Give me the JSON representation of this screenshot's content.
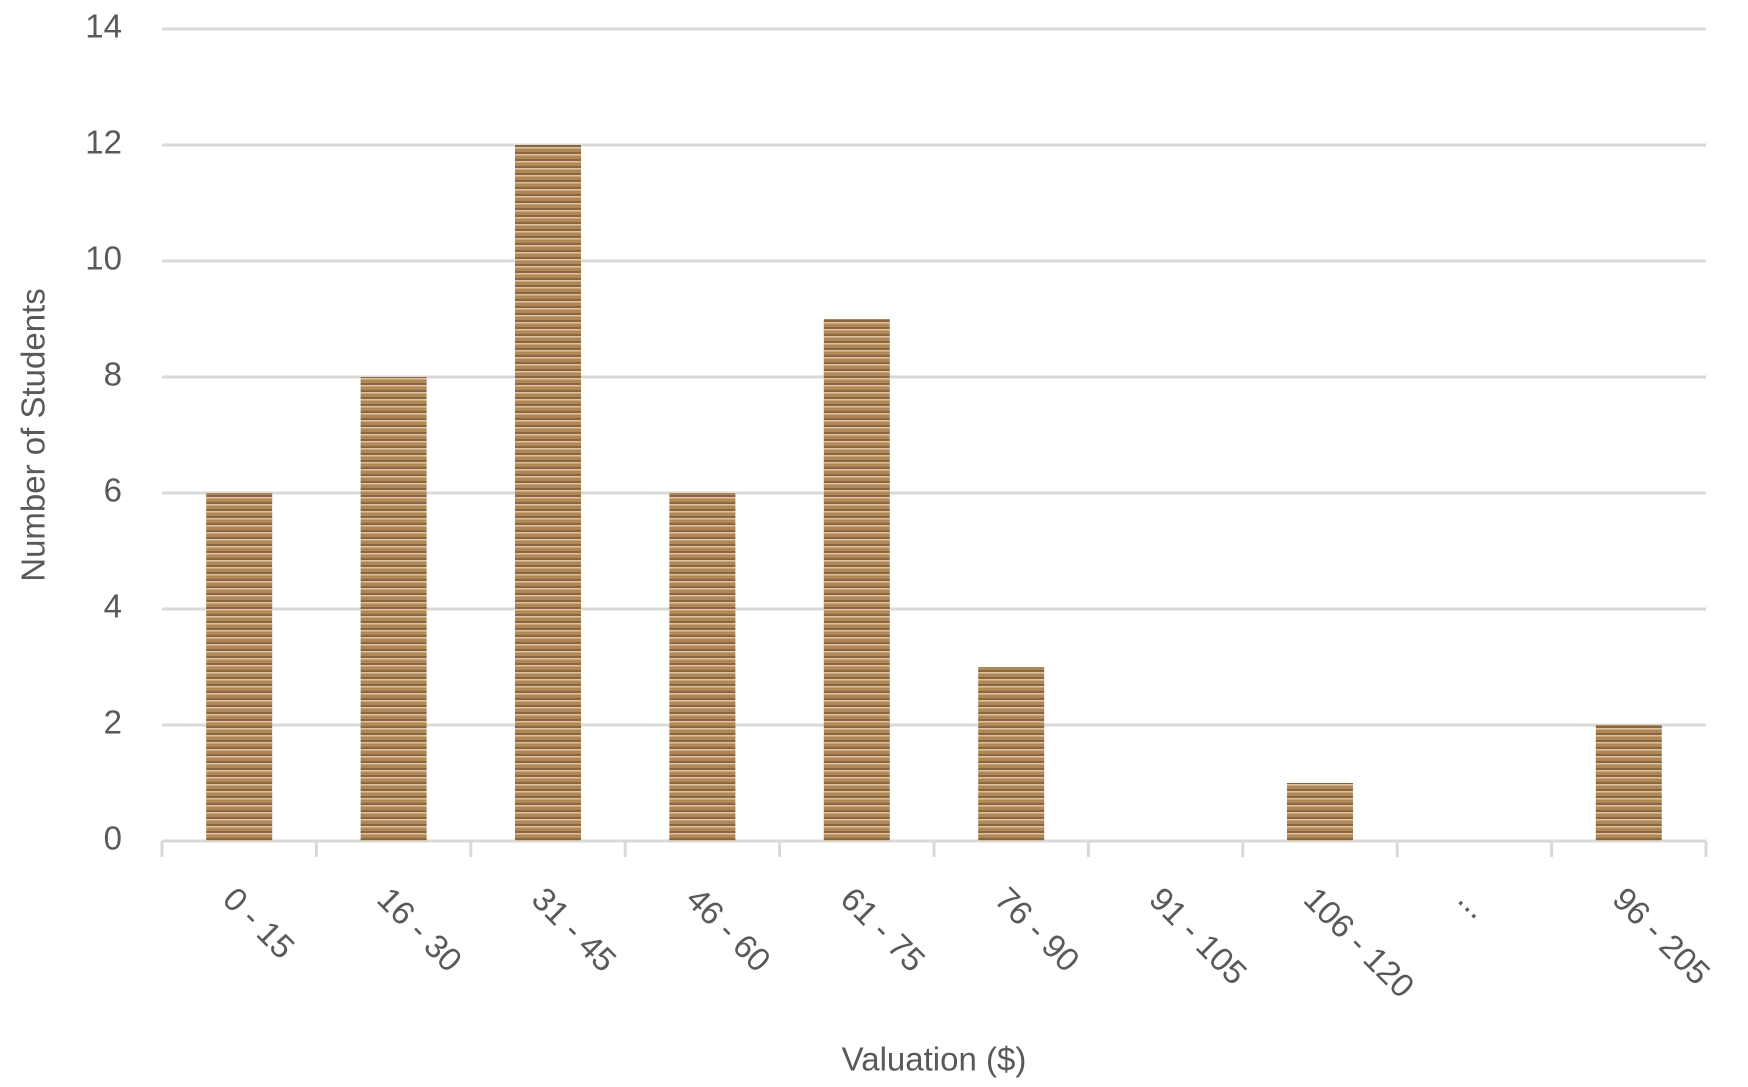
{
  "chart_data": {
    "type": "bar",
    "categories": [
      "0 - 15",
      "16 - 30",
      "31 - 45",
      "46 - 60",
      "61 - 75",
      "76 - 90",
      "91 - 105",
      "106 - 120",
      "...",
      "96 - 205"
    ],
    "values": [
      6,
      8,
      12,
      6,
      9,
      3,
      0,
      1,
      0,
      2
    ],
    "color": "#b08757",
    "x_label": "Valuation ($)",
    "y_label": "Number of Students",
    "ylim": [
      0,
      14
    ],
    "yticks": [
      0,
      2,
      4,
      6,
      8,
      10,
      12,
      14
    ],
    "grid": true
  }
}
